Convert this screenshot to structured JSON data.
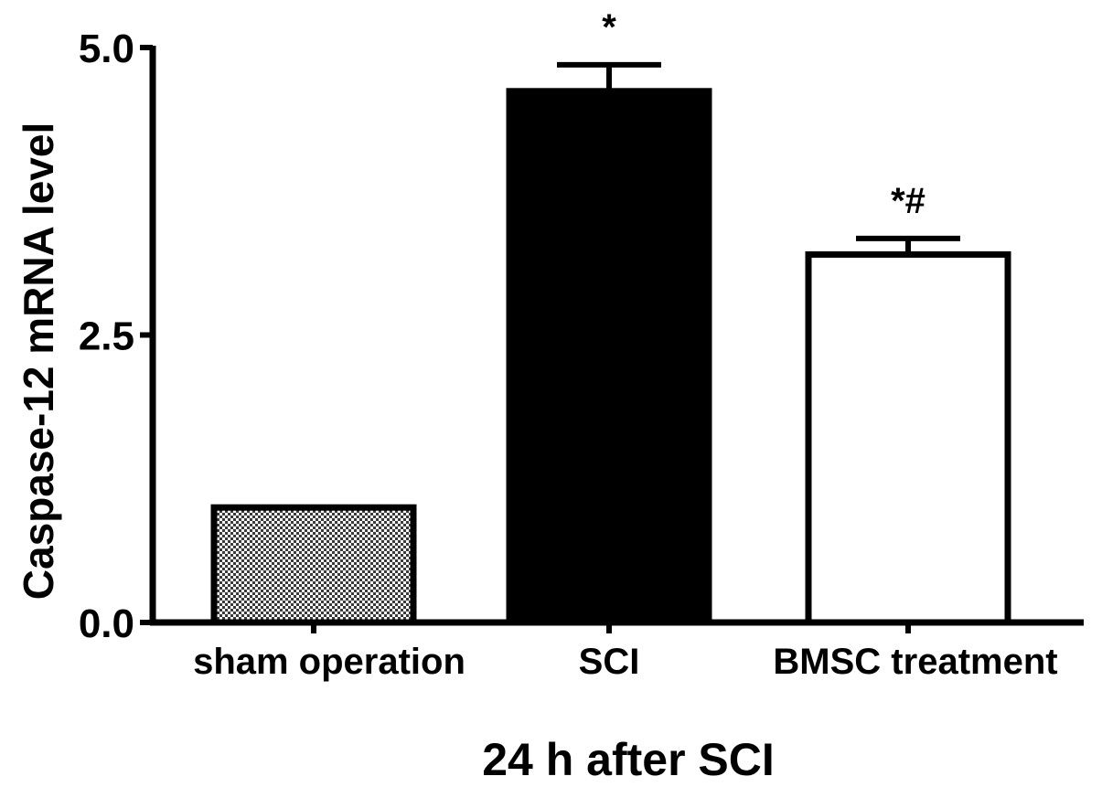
{
  "chart_data": {
    "type": "bar",
    "title": "",
    "xlabel": "24 h after SCI",
    "ylabel": "Caspase-12 mRNA level",
    "ylim": [
      0,
      5.0
    ],
    "yticks": [
      "0.0",
      "2.5",
      "5.0"
    ],
    "yticks_values": [
      0,
      2.5,
      5.0
    ],
    "grid": false,
    "categories": [
      "sham operation",
      "SCI",
      "BMSC treatment"
    ],
    "values": [
      1.0,
      4.62,
      3.2
    ],
    "errors": [
      0.0,
      0.23,
      0.14
    ],
    "fills": [
      "checkered",
      "solid-black",
      "white"
    ],
    "annotations": [
      "",
      "*",
      "*#"
    ]
  }
}
